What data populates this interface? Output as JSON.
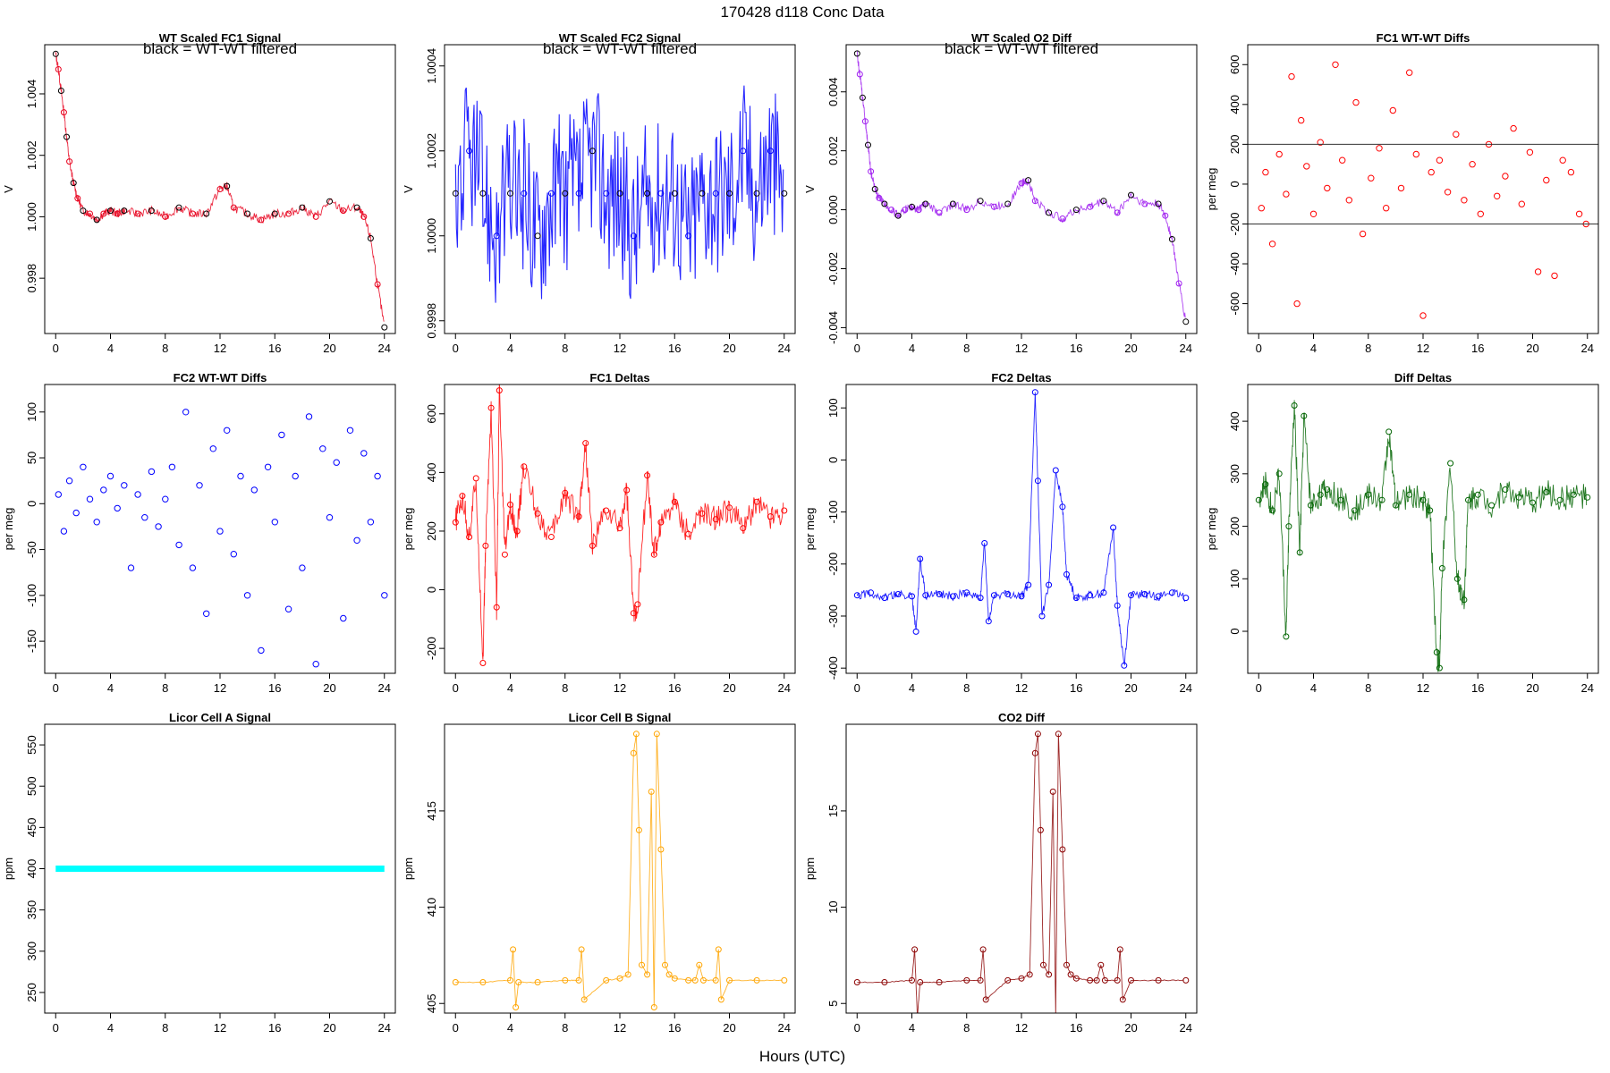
{
  "figure": {
    "title": "170428   d118   Conc Data",
    "xlabel": "Hours (UTC)"
  },
  "chart_data": [
    {
      "id": "wt-fc1",
      "type": "line",
      "title": "WT Scaled FC1 Signal",
      "ylabel": "V",
      "annotation": "black = WT-WT filtered",
      "color": "#e8001c",
      "overlay_color": "#000000",
      "xlim": [
        -0.8,
        24.8
      ],
      "ylim": [
        0.9962,
        1.0056
      ],
      "xticks": [
        0,
        4,
        8,
        12,
        16,
        20,
        24
      ],
      "yticks": [
        0.998,
        1.0,
        1.002,
        1.004
      ],
      "ytick_labels": [
        "0.998",
        "1.000",
        "1.002",
        "1.004"
      ],
      "x": [
        0,
        0.2,
        0.4,
        0.6,
        0.8,
        1,
        1.3,
        1.6,
        2,
        2.5,
        3,
        3.5,
        4,
        4.5,
        5,
        6,
        7,
        8,
        9,
        10,
        11,
        12,
        12.5,
        13,
        14,
        15,
        16,
        17,
        18,
        19,
        20,
        21,
        22,
        22.5,
        23,
        23.5,
        24
      ],
      "y": [
        1.0053,
        1.0048,
        1.0041,
        1.0034,
        1.0026,
        1.0018,
        1.0011,
        1.0006,
        1.0002,
        1.0001,
        0.9999,
        1.0001,
        1.0002,
        1.0001,
        1.0002,
        1.0001,
        1.0002,
        1.0,
        1.0003,
        1.0001,
        1.0001,
        1.0009,
        1.001,
        1.0003,
        1.0001,
        0.9999,
        1.0001,
        1.0001,
        1.0003,
        1.0,
        1.0005,
        1.0002,
        1.0003,
        1.0,
        0.9993,
        0.9978,
        0.9964
      ]
    },
    {
      "id": "wt-fc2",
      "type": "line",
      "title": "WT Scaled FC2 Signal",
      "ylabel": "V",
      "annotation": "black = WT-WT filtered",
      "color": "#0000ff",
      "overlay_color": "#000000",
      "xlim": [
        -0.8,
        24.8
      ],
      "ylim": [
        0.99977,
        1.00045
      ],
      "xticks": [
        0,
        4,
        8,
        12,
        16,
        20,
        24
      ],
      "yticks": [
        0.9998,
        1.0,
        1.0002,
        1.0004
      ],
      "ytick_labels": [
        "0.9998",
        "1.0000",
        "1.0002",
        "1.0004"
      ],
      "x": [
        0,
        1,
        2,
        3,
        4,
        5,
        6,
        7,
        8,
        9,
        10,
        11,
        12,
        13,
        14,
        15,
        16,
        17,
        18,
        19,
        20,
        21,
        22,
        23,
        24
      ],
      "y": [
        1.0001,
        1.0002,
        1.0001,
        1.0,
        1.0001,
        1.0001,
        1.0,
        1.0001,
        1.0001,
        1.0001,
        1.0002,
        1.0001,
        1.0001,
        1.0,
        1.0001,
        1.0001,
        1.0001,
        1.0,
        1.0001,
        1.0001,
        1.0001,
        1.0002,
        1.0001,
        1.0002,
        1.0001
      ]
    },
    {
      "id": "wt-o2",
      "type": "line",
      "title": "WT Scaled O2 Diff",
      "ylabel": "V",
      "annotation": "black = WT-WT filtered",
      "color": "#a020f0",
      "overlay_color": "#000000",
      "xlim": [
        -0.8,
        24.8
      ],
      "ylim": [
        -0.0042,
        0.0056
      ],
      "xticks": [
        0,
        4,
        8,
        12,
        16,
        20,
        24
      ],
      "yticks": [
        -0.004,
        -0.002,
        0.0,
        0.002,
        0.004
      ],
      "ytick_labels": [
        "-0.004",
        "-0.002",
        "0.000",
        "0.002",
        "0.004"
      ],
      "x": [
        0,
        0.2,
        0.4,
        0.6,
        0.8,
        1,
        1.3,
        1.6,
        2,
        2.5,
        3,
        3.5,
        4,
        4.5,
        5,
        6,
        7,
        8,
        9,
        10,
        11,
        12,
        12.5,
        13,
        14,
        15,
        16,
        17,
        18,
        19,
        20,
        21,
        22,
        22.5,
        23,
        23.5,
        24
      ],
      "y": [
        0.0053,
        0.0046,
        0.0038,
        0.003,
        0.0022,
        0.0013,
        0.0007,
        0.0004,
        0.0002,
        0.0,
        -0.0002,
        0.0,
        0.0001,
        0.0,
        0.0002,
        -0.0001,
        0.0002,
        0.0,
        0.0003,
        0.0001,
        0.0002,
        0.0009,
        0.001,
        0.0003,
        -0.0001,
        -0.0003,
        0.0,
        0.0001,
        0.0003,
        -0.0001,
        0.0005,
        0.0002,
        0.0002,
        -0.0002,
        -0.001,
        -0.0025,
        -0.0038
      ]
    },
    {
      "id": "fc1-wt",
      "type": "scatter",
      "title": "FC1 WT-WT Diffs",
      "ylabel": "per meg",
      "color": "#ff0000",
      "hlines": [
        200,
        -200
      ],
      "xlim": [
        -0.8,
        24.8
      ],
      "ylim": [
        -750,
        700
      ],
      "xticks": [
        0,
        4,
        8,
        12,
        16,
        20,
        24
      ],
      "yticks": [
        -600,
        -400,
        -200,
        0,
        200,
        400,
        600
      ],
      "x": [
        0.2,
        0.5,
        1.0,
        1.5,
        2.0,
        2.4,
        2.8,
        3.1,
        3.5,
        4.0,
        4.5,
        5.0,
        5.6,
        6.1,
        6.6,
        7.1,
        7.6,
        8.2,
        8.8,
        9.3,
        9.8,
        10.4,
        11.0,
        11.5,
        12.0,
        12.6,
        13.2,
        13.8,
        14.4,
        15.0,
        15.6,
        16.2,
        16.8,
        17.4,
        18.0,
        18.6,
        19.2,
        19.8,
        20.4,
        21.0,
        21.6,
        22.2,
        22.8,
        23.4,
        23.9
      ],
      "y": [
        -120,
        60,
        -300,
        150,
        -50,
        540,
        -600,
        320,
        90,
        -150,
        210,
        -20,
        600,
        120,
        -80,
        410,
        -250,
        30,
        180,
        -120,
        370,
        -20,
        560,
        150,
        -660,
        60,
        120,
        -40,
        250,
        -80,
        100,
        -150,
        200,
        -60,
        40,
        280,
        -100,
        160,
        -440,
        20,
        -460,
        120,
        60,
        -150,
        -200
      ]
    },
    {
      "id": "fc2-wt",
      "type": "scatter",
      "title": "FC2 WT-WT Diffs",
      "ylabel": "per meg",
      "color": "#0000ff",
      "xlim": [
        -0.8,
        24.8
      ],
      "ylim": [
        -185,
        130
      ],
      "xticks": [
        0,
        4,
        8,
        12,
        16,
        20,
        24
      ],
      "yticks": [
        -150,
        -100,
        -50,
        0,
        50,
        100
      ],
      "x": [
        0.2,
        0.6,
        1.0,
        1.5,
        2.0,
        2.5,
        3.0,
        3.5,
        4.0,
        4.5,
        5.0,
        5.5,
        6.0,
        6.5,
        7.0,
        7.5,
        8.0,
        8.5,
        9.0,
        9.5,
        10.0,
        10.5,
        11.0,
        11.5,
        12.0,
        12.5,
        13.0,
        13.5,
        14.0,
        14.5,
        15.0,
        15.5,
        16.0,
        16.5,
        17.0,
        17.5,
        18.0,
        18.5,
        19.0,
        19.5,
        20.0,
        20.5,
        21.0,
        21.5,
        22.0,
        22.5,
        23.0,
        23.5,
        24.0
      ],
      "y": [
        10,
        -30,
        25,
        -10,
        40,
        5,
        -20,
        15,
        30,
        -5,
        20,
        -70,
        10,
        -15,
        35,
        -25,
        5,
        40,
        -45,
        100,
        -70,
        20,
        -120,
        60,
        -30,
        80,
        -55,
        30,
        -100,
        15,
        -160,
        40,
        -20,
        75,
        -115,
        30,
        -70,
        95,
        -175,
        60,
        -15,
        45,
        -125,
        80,
        -40,
        55,
        -20,
        30,
        -100
      ]
    },
    {
      "id": "fc1-deltas",
      "type": "line",
      "title": "FC1 Deltas",
      "ylabel": "per meg",
      "color": "#ff0000",
      "markers": true,
      "xlim": [
        -0.8,
        24.8
      ],
      "ylim": [
        -285,
        700
      ],
      "xticks": [
        0,
        4,
        8,
        12,
        16,
        20,
        24
      ],
      "yticks": [
        -200,
        0,
        200,
        400,
        600
      ],
      "x": [
        0,
        0.5,
        1,
        1.5,
        2,
        2.2,
        2.6,
        3,
        3.2,
        3.6,
        4,
        4.5,
        5,
        6,
        7,
        8,
        9,
        9.5,
        10,
        11,
        12,
        12.5,
        13,
        13.3,
        14,
        14.5,
        15,
        16,
        17,
        18,
        19,
        20,
        21,
        22,
        23,
        24
      ],
      "y": [
        230,
        320,
        180,
        380,
        -250,
        150,
        620,
        -60,
        680,
        120,
        290,
        200,
        420,
        260,
        180,
        330,
        250,
        500,
        150,
        270,
        210,
        340,
        -80,
        -50,
        390,
        120,
        230,
        300,
        190,
        260,
        240,
        280,
        210,
        300,
        250,
        270
      ]
    },
    {
      "id": "fc2-deltas",
      "type": "line",
      "title": "FC2 Deltas",
      "ylabel": "per meg",
      "color": "#0000ff",
      "markers": true,
      "xlim": [
        -0.8,
        24.8
      ],
      "ylim": [
        -410,
        145
      ],
      "xticks": [
        0,
        4,
        8,
        12,
        16,
        20,
        24
      ],
      "yticks": [
        -400,
        -300,
        -200,
        -100,
        0,
        100
      ],
      "x": [
        0,
        1,
        2,
        3,
        4,
        4.3,
        4.6,
        5,
        6,
        7,
        8,
        9,
        9.3,
        9.6,
        10,
        11,
        12,
        12.5,
        13,
        13.2,
        13.5,
        14,
        14.5,
        15,
        15.3,
        16,
        17,
        18,
        18.7,
        19,
        19.5,
        20,
        21,
        22,
        23,
        24
      ],
      "y": [
        -260,
        -255,
        -265,
        -258,
        -262,
        -330,
        -190,
        -260,
        -258,
        -262,
        -255,
        -265,
        -160,
        -310,
        -260,
        -258,
        -262,
        -240,
        130,
        -40,
        -300,
        -240,
        -20,
        -90,
        -220,
        -265,
        -260,
        -255,
        -130,
        -280,
        -395,
        -260,
        -258,
        -262,
        -255,
        -265
      ]
    },
    {
      "id": "diff-deltas",
      "type": "line",
      "title": "Diff Deltas",
      "ylabel": "per meg",
      "color": "#006400",
      "markers": true,
      "xlim": [
        -0.8,
        24.8
      ],
      "ylim": [
        -80,
        470
      ],
      "xticks": [
        0,
        4,
        8,
        12,
        16,
        20,
        24
      ],
      "yticks": [
        0,
        100,
        200,
        300,
        400
      ],
      "x": [
        0,
        0.5,
        1,
        1.5,
        2,
        2.2,
        2.6,
        3,
        3.3,
        3.8,
        4.5,
        5,
        6,
        7,
        8,
        9,
        9.5,
        10,
        11,
        12,
        12.5,
        13,
        13.2,
        13.4,
        14,
        14.5,
        15,
        15.3,
        16,
        17,
        18,
        19,
        20,
        21,
        22,
        23,
        24
      ],
      "y": [
        250,
        280,
        230,
        300,
        -10,
        200,
        430,
        150,
        410,
        240,
        260,
        270,
        250,
        230,
        260,
        250,
        380,
        240,
        260,
        250,
        230,
        -40,
        -70,
        120,
        320,
        100,
        60,
        250,
        260,
        240,
        270,
        255,
        245,
        265,
        250,
        260,
        255
      ]
    },
    {
      "id": "licor-a",
      "type": "scatter",
      "title": "Licor Cell A Signal",
      "ylabel": "ppm",
      "color": "#00ffff",
      "thick": true,
      "xlim": [
        -0.8,
        24.8
      ],
      "ylim": [
        225,
        575
      ],
      "xticks": [
        0,
        4,
        8,
        12,
        16,
        20,
        24
      ],
      "yticks": [
        250,
        300,
        350,
        400,
        450,
        500,
        550
      ],
      "x": [
        0,
        24
      ],
      "y": [
        400,
        400
      ]
    },
    {
      "id": "licor-b",
      "type": "line",
      "title": "Licor Cell B Signal",
      "ylabel": "ppm",
      "color": "#ffa500",
      "markers": true,
      "xlim": [
        -0.8,
        24.8
      ],
      "ylim": [
        404.5,
        419.5
      ],
      "xticks": [
        0,
        4,
        8,
        12,
        16,
        20,
        24
      ],
      "yticks": [
        405,
        410,
        415
      ],
      "x": [
        0,
        2,
        4,
        4.2,
        4.4,
        4.6,
        6,
        8,
        9,
        9.2,
        9.4,
        11,
        12,
        12.6,
        13,
        13.2,
        13.4,
        13.6,
        14,
        14.3,
        14.5,
        14.7,
        15,
        15.3,
        15.6,
        16,
        17,
        17.5,
        17.8,
        18.1,
        19,
        19.2,
        19.4,
        20,
        22,
        24
      ],
      "y": [
        406.1,
        406.1,
        406.2,
        407.8,
        404.8,
        406.1,
        406.1,
        406.2,
        406.2,
        407.8,
        405.2,
        406.2,
        406.3,
        406.5,
        418,
        419,
        414,
        407,
        406.5,
        416,
        404.8,
        419,
        413,
        407,
        406.5,
        406.3,
        406.2,
        406.2,
        407,
        406.2,
        406.2,
        407.8,
        405.2,
        406.2,
        406.2,
        406.2
      ]
    },
    {
      "id": "co2-diff",
      "type": "line",
      "title": "CO2 Diff",
      "ylabel": "ppm",
      "color": "#8b0000",
      "markers": true,
      "xlim": [
        -0.8,
        24.8
      ],
      "ylim": [
        4.5,
        19.5
      ],
      "xticks": [
        0,
        4,
        8,
        12,
        16,
        20,
        24
      ],
      "yticks": [
        5,
        10,
        15
      ],
      "x": [
        0,
        2,
        4,
        4.2,
        4.4,
        4.6,
        6,
        8,
        9,
        9.2,
        9.4,
        11,
        12,
        12.6,
        13,
        13.2,
        13.4,
        13.6,
        14,
        14.3,
        14.5,
        14.7,
        15,
        15.3,
        15.6,
        16,
        17,
        17.5,
        17.8,
        18.1,
        19,
        19.2,
        19.4,
        20,
        22,
        24
      ],
      "y": [
        6.1,
        6.1,
        6.2,
        7.8,
        4.3,
        6.1,
        6.1,
        6.2,
        6.2,
        7.8,
        5.2,
        6.2,
        6.3,
        6.5,
        18,
        19,
        14,
        7,
        6.5,
        16,
        4.3,
        19,
        13,
        7,
        6.5,
        6.3,
        6.2,
        6.2,
        7,
        6.2,
        6.2,
        7.8,
        5.2,
        6.2,
        6.2,
        6.2
      ]
    }
  ]
}
